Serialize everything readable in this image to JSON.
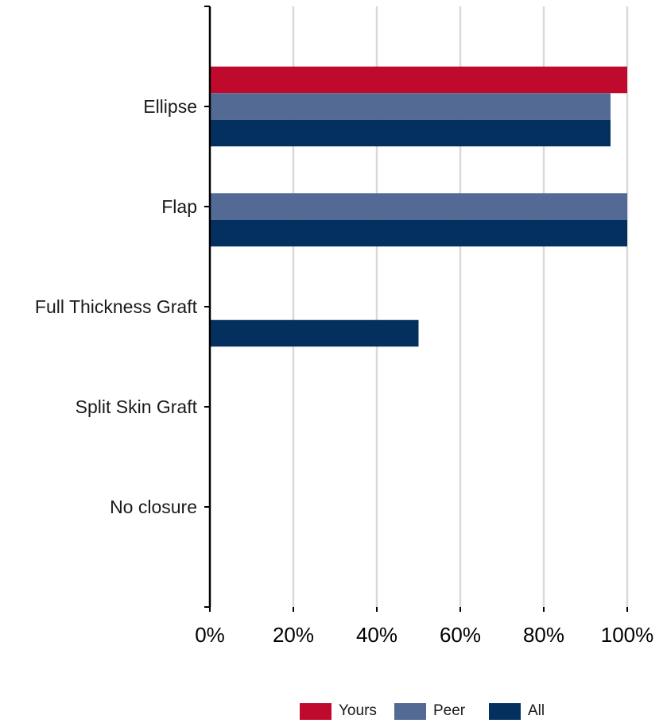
{
  "chart_data": {
    "type": "bar",
    "orientation": "horizontal",
    "categories": [
      "Ellipse",
      "Flap",
      "Full Thickness Graft",
      "Split Skin Graft",
      "No closure"
    ],
    "series": [
      {
        "name": "Yours",
        "color": "#c00a2d",
        "values": [
          100,
          0,
          0,
          0,
          0
        ]
      },
      {
        "name": "Peer",
        "color": "#536a94",
        "values": [
          96,
          100,
          0,
          0,
          0
        ]
      },
      {
        "name": "All",
        "color": "#04305f",
        "values": [
          96,
          100,
          50,
          0,
          0
        ]
      }
    ],
    "xlim": [
      0,
      100
    ],
    "x_ticks": [
      0,
      20,
      40,
      60,
      80,
      100
    ],
    "x_tick_labels": [
      "0%",
      "20%",
      "40%",
      "60%",
      "80%",
      "100%"
    ],
    "grid": "vertical",
    "legend_position": "bottom-center"
  }
}
